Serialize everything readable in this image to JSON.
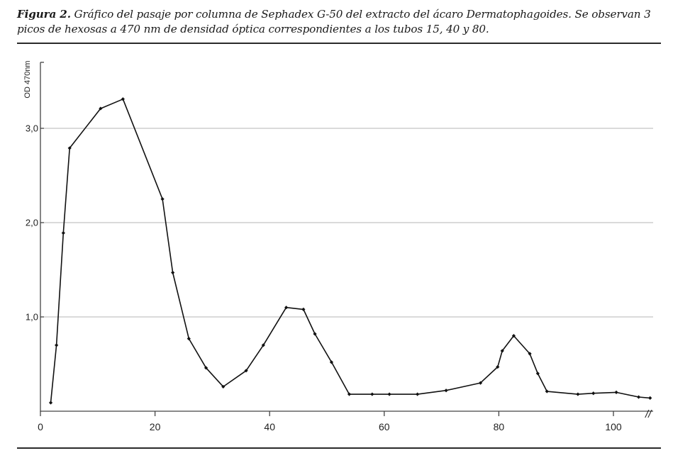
{
  "caption": {
    "label": "Figura 2.",
    "text": "Gráfico del pasaje por columna de Sephadex G-50 del extracto del ácaro Dermatophagoides. Se observan 3 picos de hexosas a 470 nm de densidad óptica correspondientes a los tubos 15, 40 y 80."
  },
  "chart_data": {
    "type": "line",
    "title": "",
    "xlabel": "",
    "ylabel": "OD 470nm",
    "xlim": [
      0,
      107
    ],
    "ylim": [
      0,
      3.7
    ],
    "grid": true,
    "axis_break_marker": "//",
    "x_ticks": [
      {
        "value": 0,
        "label": "0"
      },
      {
        "value": 20,
        "label": "20"
      },
      {
        "value": 40,
        "label": "40"
      },
      {
        "value": 60,
        "label": "60"
      },
      {
        "value": 80,
        "label": "80"
      },
      {
        "value": 100,
        "label": "100"
      }
    ],
    "y_ticks": [
      {
        "value": 1.0,
        "label": "1,0"
      },
      {
        "value": 2.0,
        "label": "2,0"
      },
      {
        "value": 3.0,
        "label": "3,0"
      }
    ],
    "series": [
      {
        "x": [
          1.8,
          2.8,
          4.0,
          5.1,
          10.5,
          14.4,
          21.3,
          23.1,
          25.9,
          28.9,
          31.9,
          35.9,
          38.9,
          42.9,
          45.9,
          47.9,
          50.8,
          53.9,
          57.9,
          60.9,
          65.8,
          70.8,
          76.8,
          79.8,
          80.6,
          82.6,
          85.4,
          86.8,
          88.4,
          93.8,
          96.5,
          100.5,
          104.4,
          106.4
        ],
        "values": [
          0.09,
          0.7,
          1.89,
          2.79,
          3.21,
          3.31,
          2.25,
          1.47,
          0.77,
          0.46,
          0.26,
          0.43,
          0.7,
          1.1,
          1.08,
          0.82,
          0.52,
          0.18,
          0.18,
          0.18,
          0.18,
          0.22,
          0.3,
          0.47,
          0.64,
          0.8,
          0.61,
          0.4,
          0.21,
          0.18,
          0.19,
          0.2,
          0.15,
          0.14
        ]
      }
    ]
  }
}
